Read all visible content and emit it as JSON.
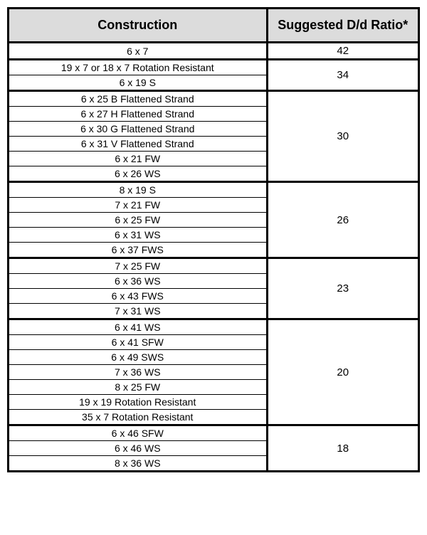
{
  "headers": {
    "construction": "Construction",
    "ratio": "Suggested D/d Ratio*"
  },
  "groups": [
    {
      "ratio": "42",
      "items": [
        "6 x 7"
      ]
    },
    {
      "ratio": "34",
      "items": [
        "19 x 7 or 18 x 7 Rotation Resistant",
        "6 x 19 S"
      ]
    },
    {
      "ratio": "30",
      "items": [
        "6 x 25 B Flattened Strand",
        "6 x 27 H Flattened Strand",
        "6 x 30 G Flattened Strand",
        "6 x 31 V Flattened Strand",
        "6 x 21 FW",
        "6 x 26 WS"
      ]
    },
    {
      "ratio": "26",
      "items": [
        "8 x 19 S",
        "7 x 21 FW",
        "6 x 25 FW",
        "6 x 31 WS",
        "6 x 37 FWS"
      ]
    },
    {
      "ratio": "23",
      "items": [
        "7 x 25 FW",
        "6 x 36 WS",
        "6 x 43 FWS",
        "7 x 31 WS"
      ]
    },
    {
      "ratio": "20",
      "items": [
        "6 x 41 WS",
        "6 x 41 SFW",
        "6 x 49 SWS",
        "7 x 36 WS",
        "8 x 25 FW",
        "19 x 19 Rotation Resistant",
        "35 x 7 Rotation Resistant"
      ]
    },
    {
      "ratio": "18",
      "items": [
        "6 x 46 SFW",
        "6 x 46 WS",
        "8 x 36 WS"
      ]
    }
  ]
}
